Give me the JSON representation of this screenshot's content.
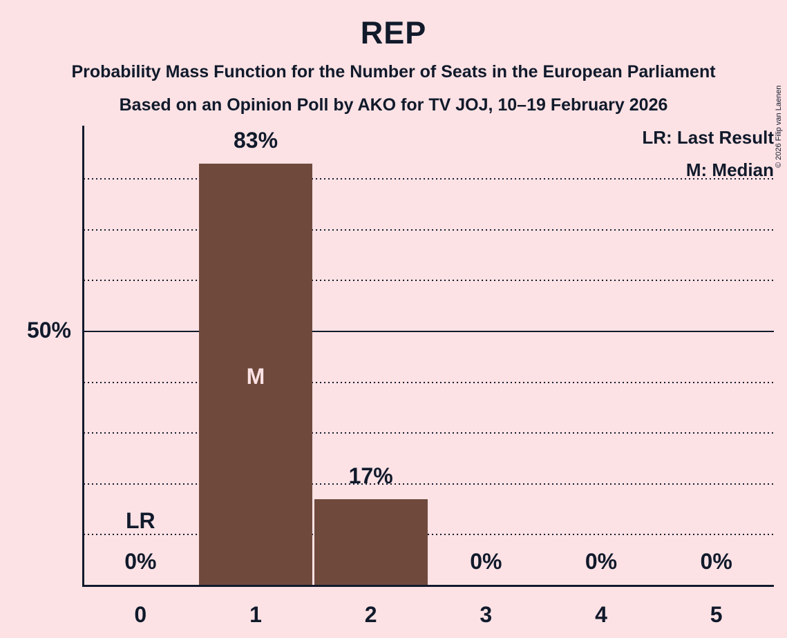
{
  "header": {
    "title": "REP",
    "subtitle_line1": "Probability Mass Function for the Number of Seats in the European Parliament",
    "subtitle_line2": "Based on an Opinion Poll by AKO for TV JOJ, 10–19 February 2026"
  },
  "copyright": "© 2026 Filip van Laenen",
  "legend": {
    "last_result": "LR: Last Result",
    "median": "M: Median",
    "position": "top-right"
  },
  "y_axis": {
    "tick_label": "50%"
  },
  "chart_data": {
    "type": "bar",
    "title": "REP",
    "categories": [
      "0",
      "1",
      "2",
      "3",
      "4",
      "5"
    ],
    "values": [
      0,
      83,
      17,
      0,
      0,
      0
    ],
    "value_labels": [
      "0%",
      "83%",
      "17%",
      "0%",
      "0%",
      "0%"
    ],
    "xlabel": "",
    "ylabel": "",
    "ylim": [
      0,
      90
    ],
    "gridlines_pct": [
      10,
      20,
      30,
      40,
      50,
      60,
      70,
      80
    ],
    "solid_gridline_pct": 50,
    "grid_on": true,
    "annotations": [
      {
        "category": "0",
        "label": "LR",
        "meaning": "last-result"
      },
      {
        "category": "1",
        "label": "M",
        "meaning": "median"
      }
    ]
  },
  "colors": {
    "background": "#fde2e5",
    "bar": "#6f4a3c",
    "text": "#101a2b",
    "median_label_text": "#fde2e5"
  }
}
